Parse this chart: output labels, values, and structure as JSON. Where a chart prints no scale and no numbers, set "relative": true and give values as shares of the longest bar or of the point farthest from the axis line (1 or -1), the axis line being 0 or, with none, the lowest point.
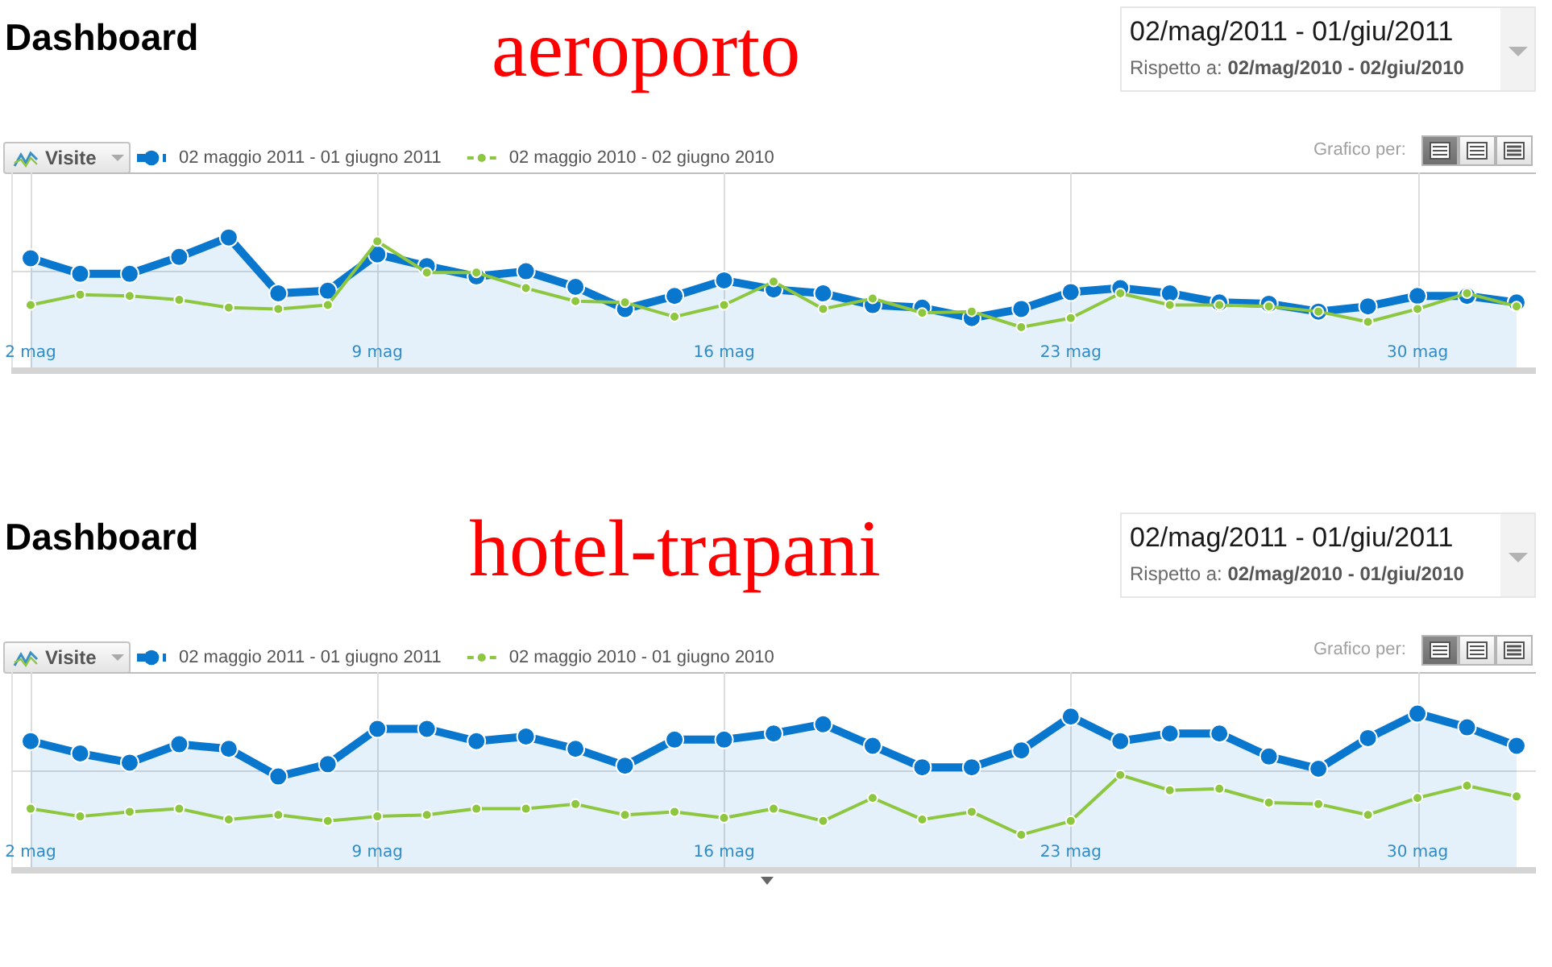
{
  "chart_data": [
    {
      "type": "line",
      "title": "Dashboard",
      "subtitle": "aeroporto",
      "ylabel": "Visite",
      "annotations": [
        "02/mag/2011 - 01/giu/2011",
        "Rispetto a:",
        "02/mag/2010 - 02/giu/2010",
        "Grafico per:"
      ],
      "categories": [
        "2 mag",
        null,
        null,
        null,
        null,
        null,
        null,
        "9 mag",
        null,
        null,
        null,
        null,
        null,
        null,
        "16 mag",
        null,
        null,
        null,
        null,
        null,
        null,
        "23 mag",
        null,
        null,
        null,
        null,
        null,
        null,
        "30 mag",
        null,
        null
      ],
      "relative": true,
      "series": [
        {
          "name": "02 maggio 2011 - 01 giugno 2011",
          "color": "#0a77cf",
          "type": "area",
          "values": [
            0.84,
            0.72,
            0.72,
            0.85,
            1,
            0.57,
            0.59,
            0.87,
            0.78,
            0.7,
            0.74,
            0.62,
            0.45,
            0.55,
            0.67,
            0.6,
            0.57,
            0.48,
            0.46,
            0.38,
            0.45,
            0.58,
            0.61,
            0.57,
            0.5,
            0.49,
            0.43,
            0.47,
            0.55,
            0.55,
            0.5
          ]
        },
        {
          "name": "02 maggio 2010 - 02 giugno 2010",
          "color": "#8dc63f",
          "type": "line",
          "values": [
            0.48,
            0.56,
            0.55,
            0.52,
            0.46,
            0.45,
            0.48,
            0.97,
            0.73,
            0.73,
            0.61,
            0.51,
            0.5,
            0.39,
            0.48,
            0.66,
            0.45,
            0.53,
            0.42,
            0.43,
            0.31,
            0.38,
            0.57,
            0.48,
            0.48,
            0.47,
            0.43,
            0.35,
            0.45,
            0.57,
            0.47
          ]
        }
      ],
      "marker": "circle",
      "grid": true,
      "legend": "top left"
    },
    {
      "type": "line",
      "title": "Dashboard",
      "subtitle": "hotel-trapani",
      "ylabel": "Visite",
      "annotations": [
        "02/mag/2011 - 01/giu/2011",
        "Rispetto a:",
        "02/mag/2010 - 01/giu/2010",
        "Grafico per:"
      ],
      "categories": [
        "2 mag",
        null,
        null,
        null,
        null,
        null,
        null,
        "9 mag",
        null,
        null,
        null,
        null,
        null,
        null,
        "16 mag",
        null,
        null,
        null,
        null,
        null,
        null,
        "23 mag",
        null,
        null,
        null,
        null,
        null,
        null,
        "30 mag",
        null,
        null
      ],
      "relative": true,
      "series": [
        {
          "name": "02 maggio 2011 - 01 giugno 2011",
          "color": "#0a77cf",
          "type": "area",
          "values": [
            0.82,
            0.74,
            0.68,
            0.8,
            0.77,
            0.59,
            0.67,
            0.9,
            0.9,
            0.82,
            0.85,
            0.77,
            0.66,
            0.83,
            0.83,
            0.87,
            0.93,
            0.79,
            0.65,
            0.65,
            0.76,
            0.98,
            0.82,
            0.87,
            0.87,
            0.72,
            0.64,
            0.84,
            1,
            0.91,
            0.79
          ]
        },
        {
          "name": "02 maggio 2010 - 01 giugno 2010",
          "color": "#8dc63f",
          "type": "line",
          "values": [
            0.38,
            0.33,
            0.36,
            0.38,
            0.31,
            0.34,
            0.3,
            0.33,
            0.34,
            0.38,
            0.38,
            0.41,
            0.34,
            0.36,
            0.32,
            0.38,
            0.3,
            0.45,
            0.31,
            0.36,
            0.21,
            0.3,
            0.6,
            0.5,
            0.51,
            0.42,
            0.41,
            0.34,
            0.45,
            0.53,
            0.46
          ]
        }
      ],
      "marker": "circle",
      "grid": true,
      "legend": "top left"
    }
  ]
}
